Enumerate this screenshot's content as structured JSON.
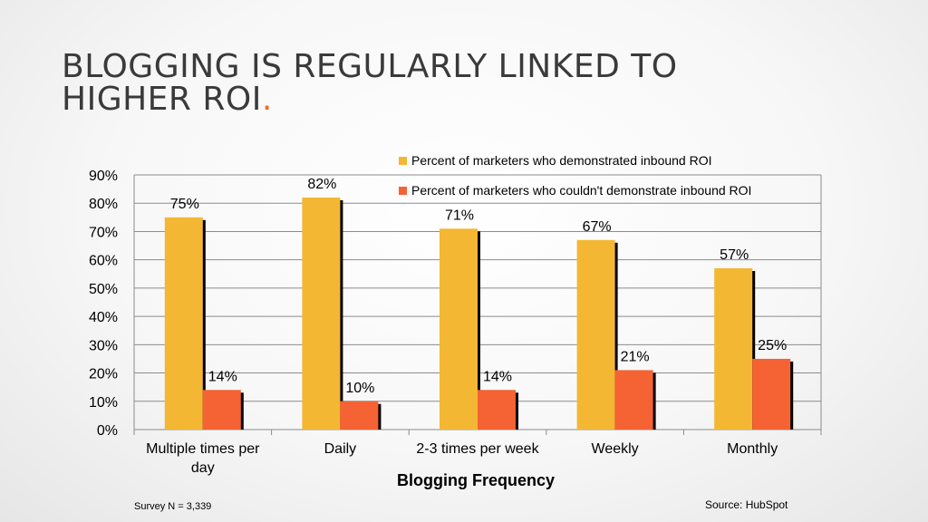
{
  "slide": {
    "title_line1": "BLOGGING IS REGULARLY LINKED TO",
    "title_line2": "HIGHER ROI",
    "title_dot": ".",
    "footnote": "Survey N = 3,339",
    "source": "Source: HubSpot"
  },
  "colors": {
    "series1": "#F4B733",
    "series2": "#F56233",
    "accent": "#F26A2E"
  },
  "chart_data": {
    "type": "bar",
    "title": "",
    "xlabel": "Blogging Frequency",
    "ylabel": "",
    "ylim": [
      0,
      90
    ],
    "yticks": [
      "0%",
      "10%",
      "20%",
      "30%",
      "40%",
      "50%",
      "60%",
      "70%",
      "80%",
      "90%"
    ],
    "categories": [
      [
        "Multiple times per",
        "day"
      ],
      [
        "Daily"
      ],
      [
        "2-3 times per week"
      ],
      [
        "Weekly"
      ],
      [
        "Monthly"
      ]
    ],
    "series": [
      {
        "name": "Percent of marketers who demonstrated inbound ROI",
        "values": [
          75,
          82,
          71,
          67,
          57
        ],
        "labels": [
          "75%",
          "82%",
          "71%",
          "67%",
          "57%"
        ]
      },
      {
        "name": "Percent of marketers who couldn't demonstrate inbound ROI",
        "values": [
          14,
          10,
          14,
          21,
          25
        ],
        "labels": [
          "14%",
          "10%",
          "14%",
          "21%",
          "25%"
        ]
      }
    ],
    "grid": true,
    "legend_position": "top-right"
  }
}
